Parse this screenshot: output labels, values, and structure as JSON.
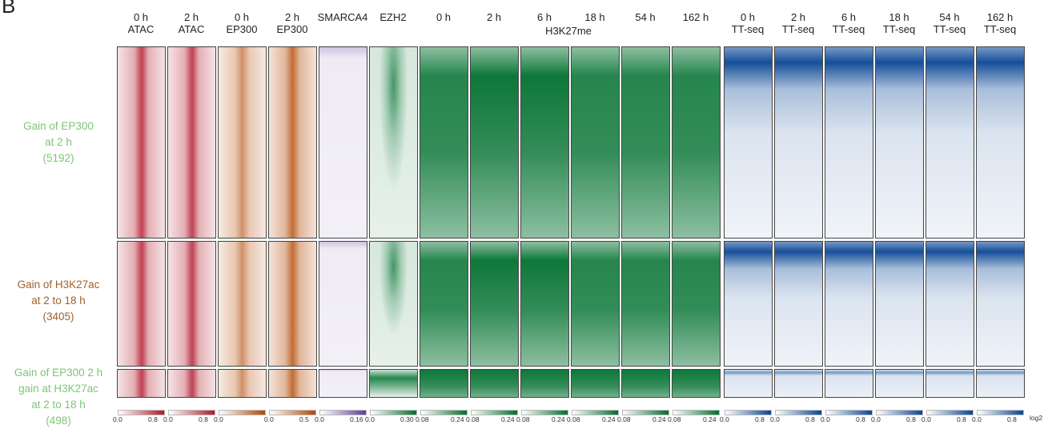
{
  "panel_letter": "B",
  "columns": [
    {
      "line1": "0 h",
      "line2": "ATAC",
      "palette": "red",
      "colors": [
        "#ffffff",
        "#b2182b"
      ],
      "ticks": [
        "0.0",
        "0.8"
      ]
    },
    {
      "line1": "2 h",
      "line2": "ATAC",
      "palette": "red",
      "colors": [
        "#ffffff",
        "#b2182b"
      ],
      "ticks": [
        "0.0",
        "0.8"
      ]
    },
    {
      "line1": "0 h",
      "line2": "EP300",
      "palette": "orange",
      "colors": [
        "#ffffff",
        "#b34700"
      ],
      "ticks": [
        "0.0",
        ""
      ]
    },
    {
      "line1": "2 h",
      "line2": "EP300",
      "palette": "orange",
      "colors": [
        "#ffffff",
        "#b34700"
      ],
      "ticks": [
        "0.0",
        "0.5"
      ]
    },
    {
      "line1": "SMARCA4",
      "line2": "",
      "palette": "purple",
      "colors": [
        "#ffffff",
        "#5e3c99"
      ],
      "ticks": [
        "0.0",
        "0.16"
      ]
    },
    {
      "line1": "EZH2",
      "line2": "",
      "palette": "green",
      "colors": [
        "#ffffff",
        "#00702e"
      ],
      "ticks": [
        "0.0",
        "0.30"
      ]
    },
    {
      "line1": "0 h",
      "line2": "",
      "palette": "green",
      "colors": [
        "#ffffff",
        "#00702e"
      ],
      "ticks": [
        "0.08",
        "0.24"
      ]
    },
    {
      "line1": "2 h",
      "line2": "",
      "palette": "green",
      "colors": [
        "#ffffff",
        "#00702e"
      ],
      "ticks": [
        "0.08",
        "0.24"
      ]
    },
    {
      "line1": "6 h",
      "line2": "",
      "palette": "green",
      "colors": [
        "#ffffff",
        "#00702e"
      ],
      "ticks": [
        "0.08",
        "0.24"
      ]
    },
    {
      "line1": "18 h",
      "line2": "",
      "palette": "green",
      "colors": [
        "#ffffff",
        "#00702e"
      ],
      "ticks": [
        "0.08",
        "0.24"
      ]
    },
    {
      "line1": "54 h",
      "line2": "",
      "palette": "green",
      "colors": [
        "#ffffff",
        "#00702e"
      ],
      "ticks": [
        "0.08",
        "0.24"
      ]
    },
    {
      "line1": "162 h",
      "line2": "",
      "palette": "green",
      "colors": [
        "#ffffff",
        "#00702e"
      ],
      "ticks": [
        "0.08",
        "0.24"
      ]
    },
    {
      "line1": "0 h",
      "line2": "TT-seq",
      "palette": "blue",
      "colors": [
        "#ffffff",
        "#084594"
      ],
      "ticks": [
        "0.0",
        "0.8"
      ]
    },
    {
      "line1": "2 h",
      "line2": "TT-seq",
      "palette": "blue",
      "colors": [
        "#ffffff",
        "#084594"
      ],
      "ticks": [
        "0.0",
        "0.8"
      ]
    },
    {
      "line1": "6 h",
      "line2": "TT-seq",
      "palette": "blue",
      "colors": [
        "#ffffff",
        "#084594"
      ],
      "ticks": [
        "0.0",
        "0.8"
      ]
    },
    {
      "line1": "18 h",
      "line2": "TT-seq",
      "palette": "blue",
      "colors": [
        "#ffffff",
        "#084594"
      ],
      "ticks": [
        "0.0",
        "0.8"
      ]
    },
    {
      "line1": "54 h",
      "line2": "TT-seq",
      "palette": "blue",
      "colors": [
        "#ffffff",
        "#084594"
      ],
      "ticks": [
        "0.0",
        "0.8"
      ]
    },
    {
      "line1": "162 h",
      "line2": "TT-seq",
      "palette": "blue",
      "colors": [
        "#ffffff",
        "#084594"
      ],
      "ticks": [
        "0.0",
        "0.8"
      ]
    }
  ],
  "h3k27_group_label": "H3K27me",
  "clusters": [
    {
      "lines": [
        "Gain of EP300",
        "at 2 h",
        "(5192)"
      ],
      "color": "#7cc576"
    },
    {
      "lines": [
        "Gain of H3K27ac",
        "at 2 to 18 h",
        "(3405)"
      ],
      "color": "#a0622a"
    },
    {
      "lines": [
        "Gain of EP300 2 h",
        "gain at H3K27ac",
        "at 2 to 18 h",
        "(498)"
      ],
      "color": "#7cc576"
    }
  ],
  "colorbar_unit": "log2"
}
